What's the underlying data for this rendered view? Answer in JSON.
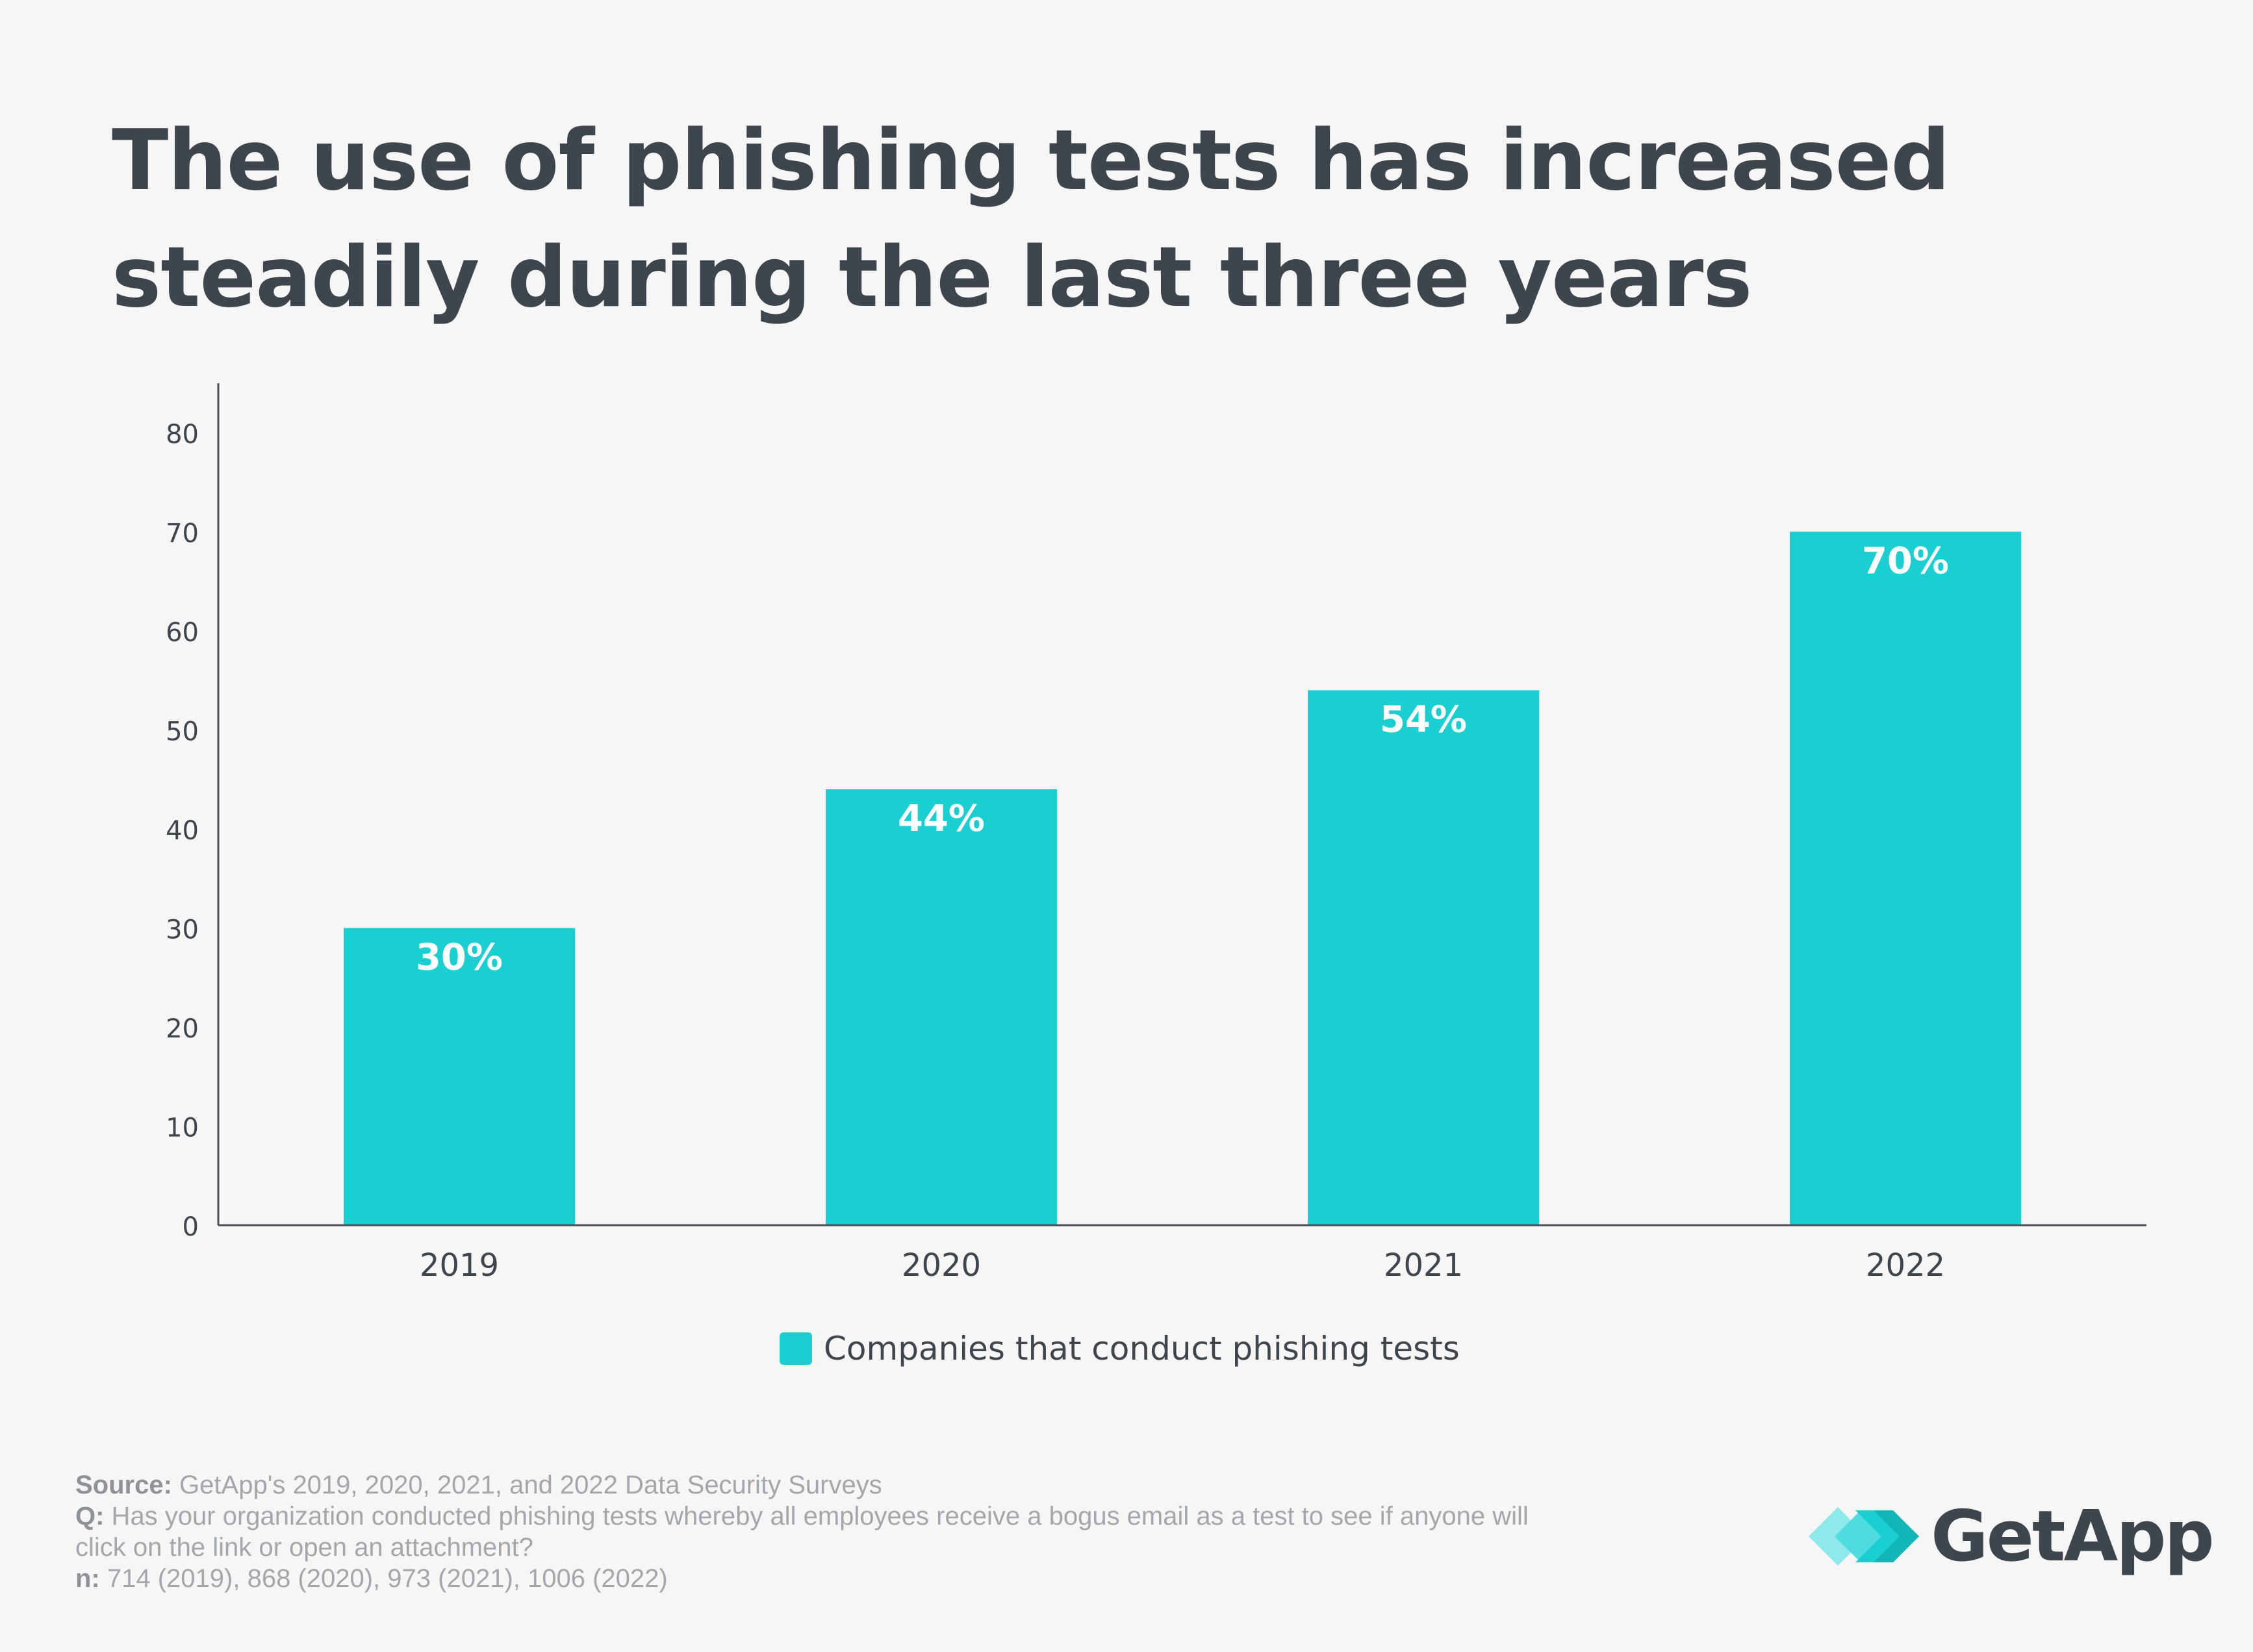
{
  "title_lines": [
    "The use of phishing tests has increased",
    "steadily during the last three years"
  ],
  "chart_data": {
    "type": "bar",
    "categories": [
      "2019",
      "2020",
      "2021",
      "2022"
    ],
    "series": [
      {
        "name": "Companies that conduct phishing tests",
        "values": [
          30,
          44,
          54,
          70
        ],
        "data_labels": [
          "30%",
          "44%",
          "54%",
          "70%"
        ],
        "color": "#1acfd1"
      }
    ],
    "yticks": [
      "0",
      "10",
      "20",
      "30",
      "40",
      "50",
      "60",
      "70",
      "80"
    ],
    "ylim": [
      0,
      85
    ],
    "grid": false,
    "legend_position": "bottom-center"
  },
  "colors": {
    "bar": "#1acfd1",
    "axis": "#4a4f56",
    "text": "#3f454d",
    "footer": "#a3a6ab",
    "background": "#f6f6f6",
    "bar_label": "#ffffff"
  },
  "footer": {
    "source_label": "Source:",
    "source_text": " GetApp's 2019, 2020, 2021, and 2022 Data Security Surveys",
    "q_label": "Q:",
    "q_text_line1": " Has your organization conducted phishing tests whereby all employees receive a bogus email as a test to see if anyone will",
    "q_text_line2": "click on the link or open an attachment?",
    "n_label": "n:",
    "n_text": " 714 (2019), 868 (2020), 973 (2021), 1006 (2022)"
  },
  "logo": {
    "text": "GetApp",
    "icon": "getapp-chevron-logo-icon"
  }
}
